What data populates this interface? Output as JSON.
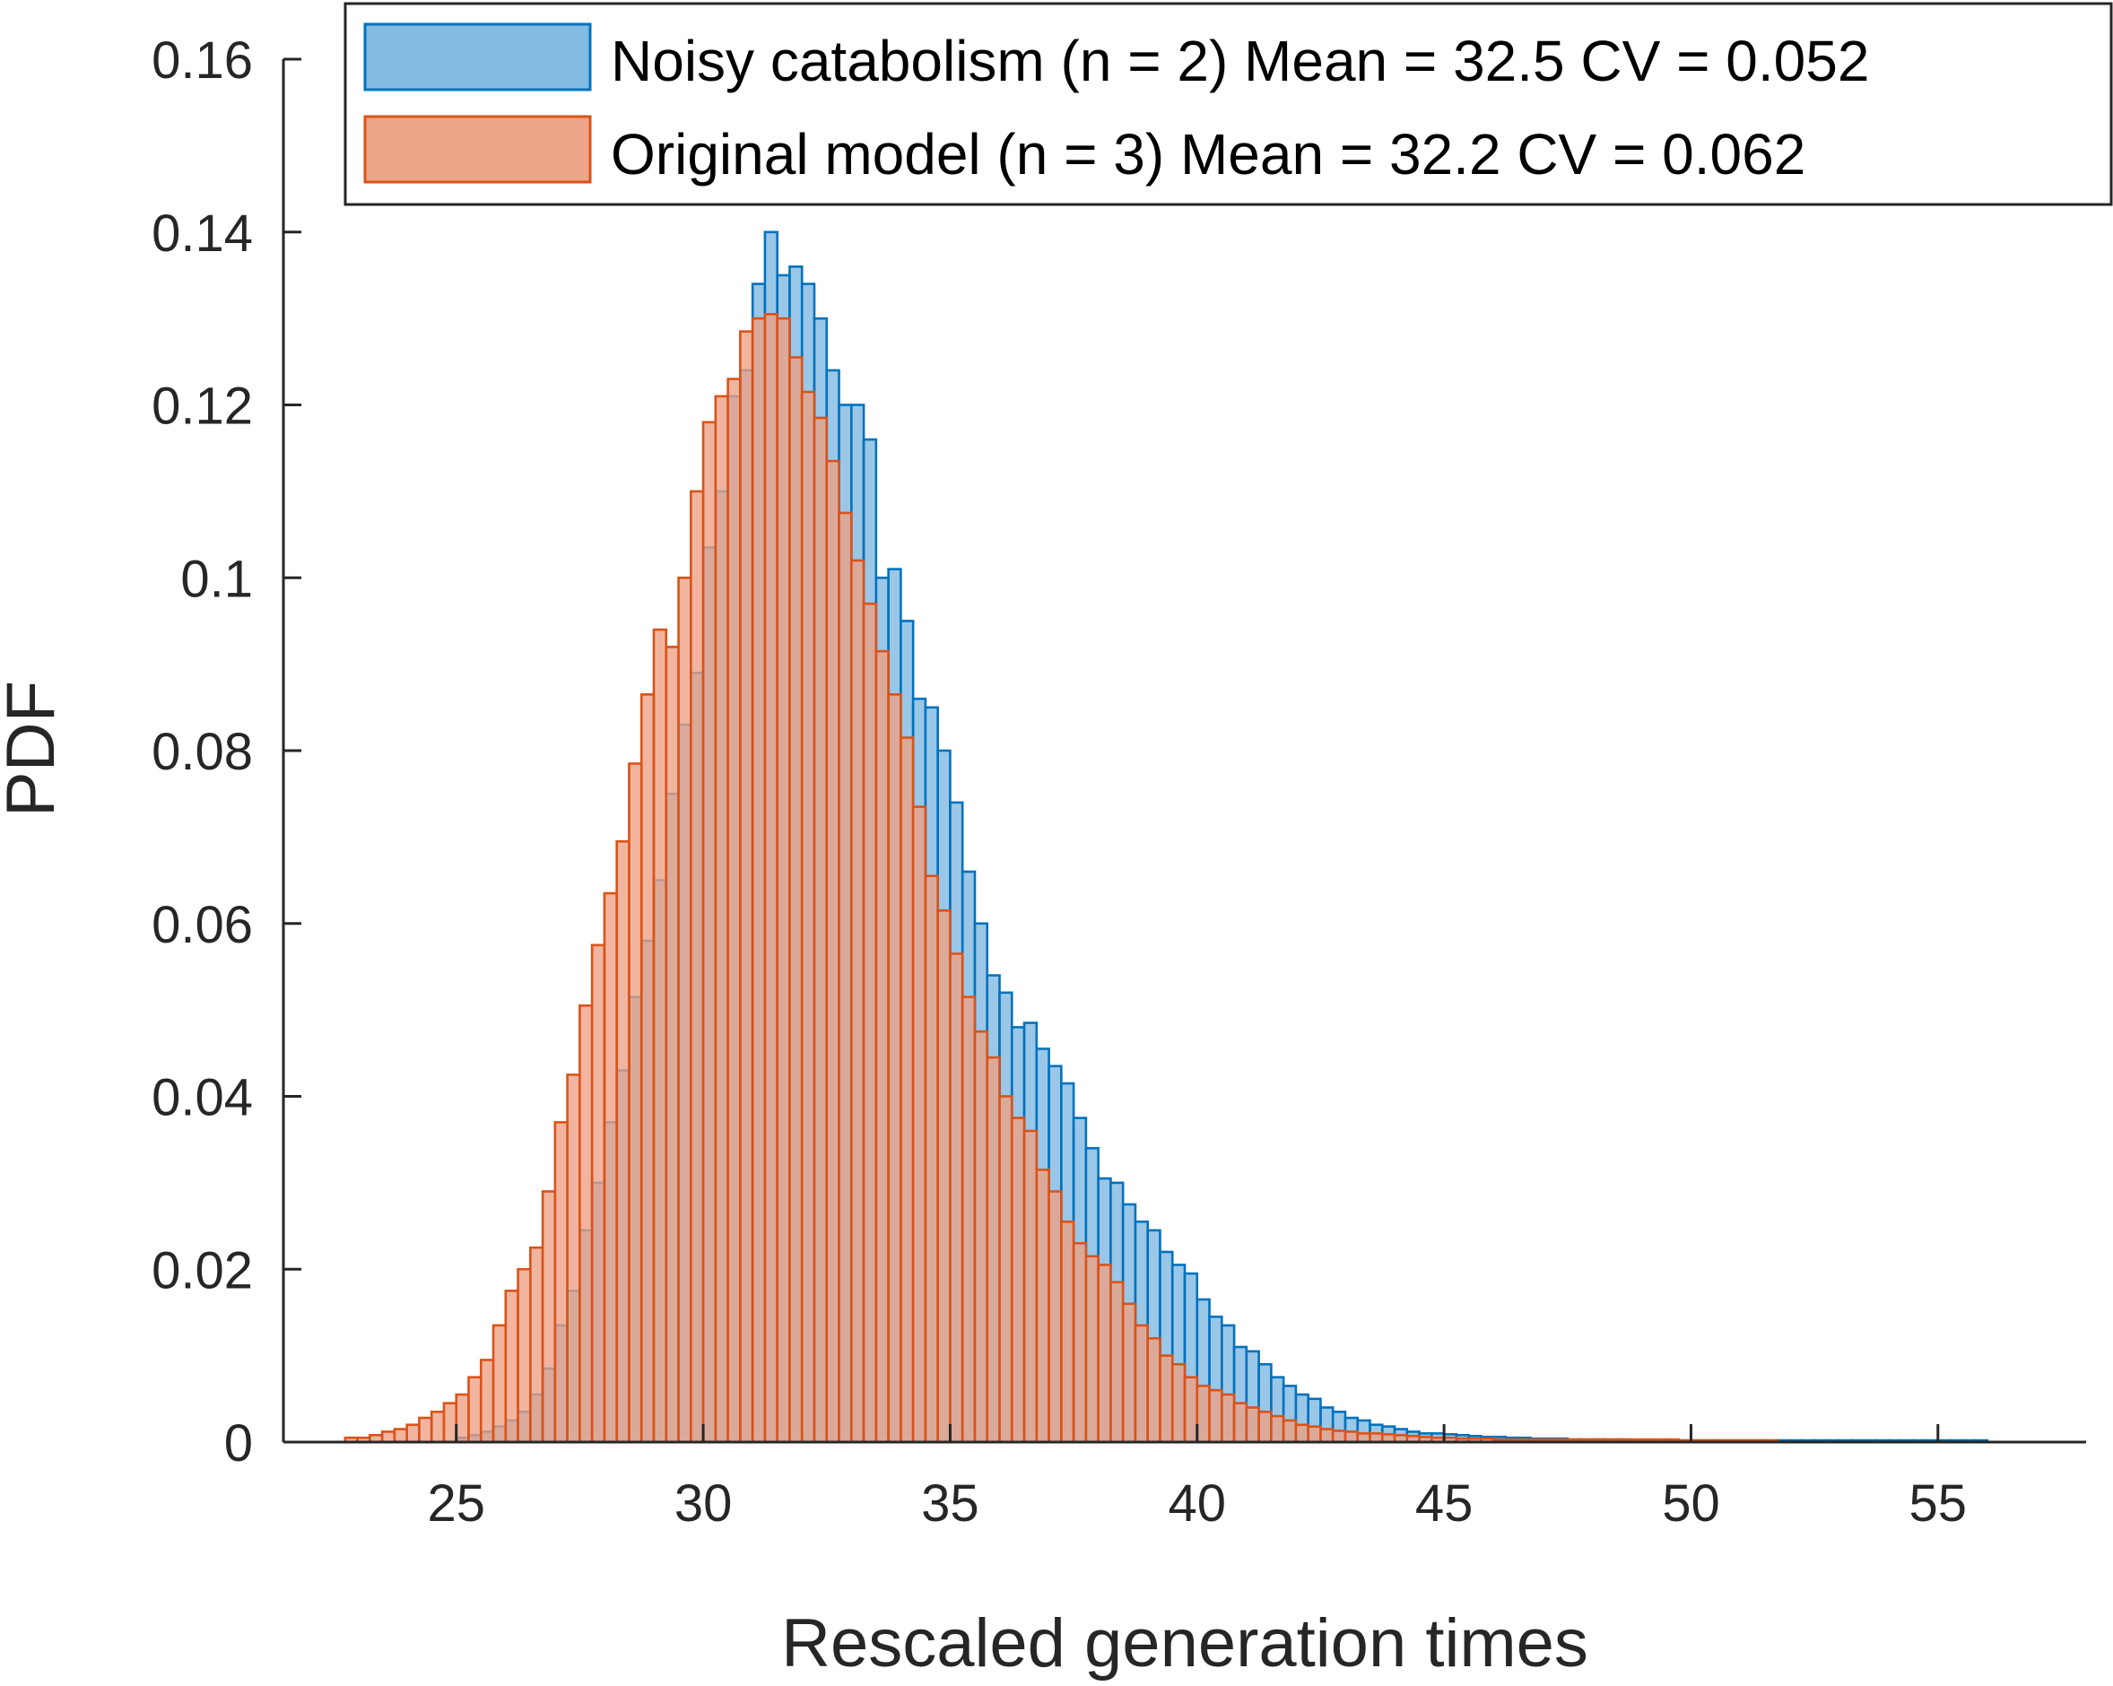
{
  "chart_data": {
    "type": "bar",
    "subtype": "overlapping-histogram",
    "title": "",
    "xlabel": "Rescaled generation times",
    "ylabel": "PDF",
    "xlim": [
      21.5,
      58
    ],
    "ylim": [
      0,
      0.16
    ],
    "x_ticks": [
      25,
      30,
      35,
      40,
      45,
      50,
      55
    ],
    "x_tick_labels": [
      "25",
      "30",
      "35",
      "40",
      "45",
      "50",
      "55"
    ],
    "y_ticks": [
      0,
      0.02,
      0.04,
      0.06,
      0.08,
      0.1,
      0.12,
      0.14,
      0.16
    ],
    "y_tick_labels": [
      "0",
      "0.02",
      "0.04",
      "0.06",
      "0.08",
      "0.1",
      "0.12",
      "0.14",
      "0.16"
    ],
    "grid": false,
    "legend_position": "top-right",
    "bin_width": 0.25,
    "series": [
      {
        "name": "Noisy catabolism (n = 2) Mean = 32.5 CV = 0.052",
        "fill": "#7db7e0",
        "edge": "#0072bd",
        "bin_start": 25.0,
        "values": [
          0.0005,
          0.0008,
          0.0012,
          0.0018,
          0.0025,
          0.0035,
          0.0055,
          0.0085,
          0.0135,
          0.0175,
          0.0245,
          0.03,
          0.037,
          0.043,
          0.0515,
          0.058,
          0.065,
          0.075,
          0.083,
          0.089,
          0.1035,
          0.11,
          0.121,
          0.124,
          0.134,
          0.14,
          0.135,
          0.136,
          0.134,
          0.13,
          0.124,
          0.12,
          0.12,
          0.116,
          0.1,
          0.101,
          0.095,
          0.086,
          0.085,
          0.08,
          0.074,
          0.066,
          0.06,
          0.054,
          0.052,
          0.048,
          0.0485,
          0.0455,
          0.0435,
          0.0415,
          0.0375,
          0.034,
          0.0305,
          0.03,
          0.0275,
          0.0255,
          0.0245,
          0.022,
          0.0205,
          0.0195,
          0.0165,
          0.0145,
          0.0135,
          0.011,
          0.0105,
          0.009,
          0.0075,
          0.0065,
          0.0055,
          0.005,
          0.004,
          0.0035,
          0.0028,
          0.0025,
          0.002,
          0.0018,
          0.0015,
          0.0012,
          0.001,
          0.001,
          0.0009,
          0.0008,
          0.0007,
          0.0006,
          0.0006,
          0.0005,
          0.0005,
          0.0004,
          0.0004,
          0.0004,
          0.0003,
          0.0003,
          0.0003,
          0.0003,
          0.0003,
          0.0002,
          0.0002,
          0.0002,
          0.0002,
          0.0002,
          0.0002,
          0.0002,
          0.0002,
          0.0002,
          0.0002,
          0.0002,
          0.0002,
          0.0002,
          0.0002,
          0.0002,
          0.0002,
          0.0002,
          0.0002,
          0.0002,
          0.0002,
          0.0002,
          0.0002,
          0.0002,
          0.0002,
          0.0002,
          0.0002,
          0.0002,
          0.0002,
          0.0002
        ]
      },
      {
        "name": "Original model (n = 3) Mean = 32.2 CV = 0.062",
        "fill": "#eda084",
        "edge": "#d95319",
        "bin_start": 22.75,
        "values": [
          0.0005,
          0.0005,
          0.0008,
          0.0012,
          0.0015,
          0.002,
          0.0028,
          0.0035,
          0.0045,
          0.0055,
          0.0075,
          0.0095,
          0.0135,
          0.0175,
          0.02,
          0.0225,
          0.029,
          0.037,
          0.0425,
          0.0505,
          0.0575,
          0.0635,
          0.0695,
          0.0785,
          0.0865,
          0.094,
          0.092,
          0.1,
          0.11,
          0.118,
          0.121,
          0.123,
          0.1285,
          0.13,
          0.1305,
          0.13,
          0.1255,
          0.1215,
          0.1185,
          0.1135,
          0.1075,
          0.102,
          0.097,
          0.0915,
          0.0865,
          0.0815,
          0.0735,
          0.0655,
          0.0615,
          0.0565,
          0.0515,
          0.0475,
          0.0445,
          0.04,
          0.0375,
          0.036,
          0.0315,
          0.029,
          0.0255,
          0.023,
          0.0215,
          0.0205,
          0.0185,
          0.016,
          0.0135,
          0.012,
          0.01,
          0.009,
          0.0075,
          0.0065,
          0.006,
          0.0055,
          0.0045,
          0.004,
          0.0035,
          0.003,
          0.0025,
          0.002,
          0.0018,
          0.0015,
          0.0013,
          0.0012,
          0.001,
          0.001,
          0.0009,
          0.0008,
          0.0007,
          0.0006,
          0.0005,
          0.0005,
          0.0004,
          0.0004,
          0.0004,
          0.0003,
          0.0003,
          0.0003,
          0.0003,
          0.0003,
          0.0003,
          0.0003,
          0.0003,
          0.0003,
          0.0003,
          0.0003,
          0.0003,
          0.0003,
          0.0003,
          0.0003,
          0.0002,
          0.0002,
          0.0002,
          0.0002,
          0.0002,
          0.0002,
          0.0002,
          0.0002
        ]
      }
    ]
  }
}
